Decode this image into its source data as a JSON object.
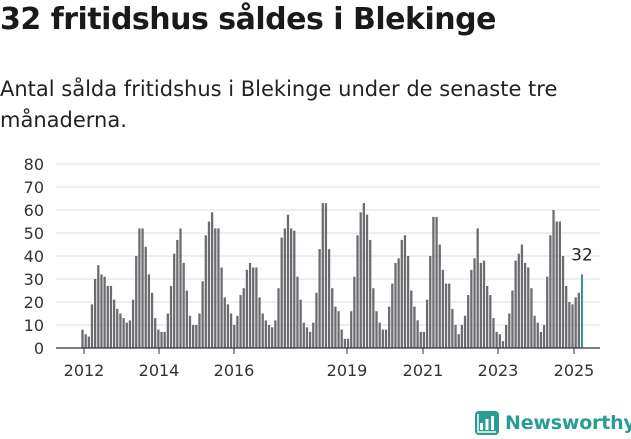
{
  "header": {
    "title": "32 fritidshus såldes i Blekinge",
    "subtitle": "Antal sålda fritidshus i Blekinge under de senaste tre månaderna."
  },
  "brand": {
    "name": "Newsworthy",
    "color": "#2a9d91",
    "icon": "bar-chart-logo-icon"
  },
  "chart_data": {
    "type": "bar",
    "title": "",
    "xlabel": "",
    "ylabel": "",
    "ylim": [
      0,
      80
    ],
    "yticks": [
      0,
      10,
      20,
      30,
      40,
      50,
      60,
      70,
      80
    ],
    "xticks": [
      "2012",
      "2014",
      "2016",
      "2019",
      "2021",
      "2023",
      "2025"
    ],
    "grid": true,
    "bar_color": "#6b6b70",
    "highlight_color": "#2a9d91",
    "highlight_label": "32",
    "values": [
      8,
      6,
      5,
      19,
      30,
      36,
      32,
      31,
      27,
      27,
      21,
      17,
      15,
      13,
      11,
      12,
      21,
      40,
      52,
      52,
      44,
      32,
      24,
      13,
      8,
      7,
      7,
      15,
      27,
      41,
      47,
      52,
      37,
      25,
      14,
      10,
      10,
      15,
      29,
      49,
      55,
      59,
      52,
      52,
      35,
      22,
      19,
      15,
      10,
      14,
      23,
      26,
      34,
      37,
      35,
      35,
      22,
      15,
      12,
      10,
      9,
      12,
      26,
      48,
      52,
      58,
      52,
      51,
      31,
      21,
      11,
      9,
      7,
      11,
      24,
      43,
      63,
      63,
      43,
      26,
      18,
      16,
      8,
      4,
      4,
      16,
      31,
      49,
      59,
      63,
      58,
      47,
      26,
      16,
      11,
      8,
      8,
      18,
      28,
      37,
      39,
      47,
      49,
      40,
      25,
      18,
      12,
      7,
      7,
      21,
      40,
      57,
      57,
      45,
      34,
      28,
      28,
      17,
      10,
      6,
      10,
      14,
      23,
      34,
      39,
      52,
      37,
      38,
      27,
      23,
      13,
      7,
      6,
      3,
      10,
      15,
      25,
      38,
      41,
      45,
      37,
      35,
      26,
      14,
      11,
      7,
      10,
      31,
      49,
      60,
      55,
      55,
      40,
      27,
      20,
      19,
      22,
      24,
      32
    ]
  }
}
